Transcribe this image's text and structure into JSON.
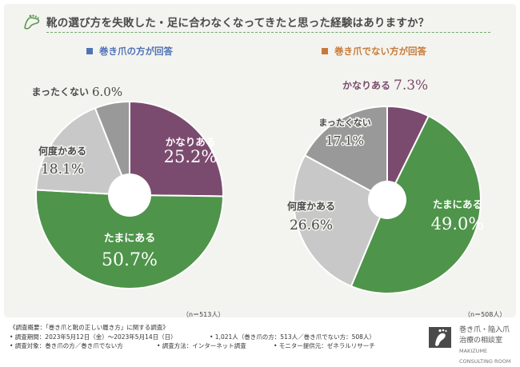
{
  "title": "靴の選び方を失敗した・足に合わなくなってきたと思った経験はありますか？",
  "colors": {
    "kanari": "#7b4b6f",
    "tamani": "#4e944a",
    "nando": "#c8c8c8",
    "mattaku": "#999999",
    "left_legend": "#4f73b5",
    "right_legend": "#c67a3a"
  },
  "chart_data": [
    {
      "type": "pie",
      "title": "巻き爪の方が回答",
      "n_label": "（n＝513人）",
      "slices": [
        {
          "label": "かなりある",
          "value": 25.2,
          "display": "25.2%",
          "color": "#7b4b6f"
        },
        {
          "label": "たまにある",
          "value": 50.7,
          "display": "50.7%",
          "color": "#4e944a"
        },
        {
          "label": "何度かある",
          "value": 18.1,
          "display": "18.1%",
          "color": "#c8c8c8"
        },
        {
          "label": "まったくない",
          "value": 6.0,
          "display": "6.0%",
          "color": "#999999"
        }
      ]
    },
    {
      "type": "pie",
      "title": "巻き爪でない方が回答",
      "n_label": "（n＝508人）",
      "slices": [
        {
          "label": "かなりある",
          "value": 7.3,
          "display": "7.3%",
          "color": "#7b4b6f"
        },
        {
          "label": "たまにある",
          "value": 49.0,
          "display": "49.0%",
          "color": "#4e944a"
        },
        {
          "label": "何度かある",
          "value": 26.6,
          "display": "26.6%",
          "color": "#c8c8c8"
        },
        {
          "label": "まったくない",
          "value": 17.1,
          "display": "17.1%",
          "color": "#999999"
        }
      ]
    }
  ],
  "footer": {
    "heading": "《調査概要：「巻き爪と靴の正しい履き方」に関する調査》",
    "period": "• 調査期間：2023年5月12日（金）〜2023年5月14日（日）",
    "people": "• 1,021人（巻き爪の方：513人／巻き爪でない方：508人）",
    "target": "• 調査対象：巻き爪の方／巻き爪でない方",
    "method": "• 調査方法：インターネット調査",
    "provider": "• モニター提供元：ゼネラルリサーチ"
  },
  "logo": {
    "line1": "巻き爪・陥入爪",
    "line2": "治療の相談室",
    "line3": "MAKIZUME CONSULTING ROOM"
  }
}
